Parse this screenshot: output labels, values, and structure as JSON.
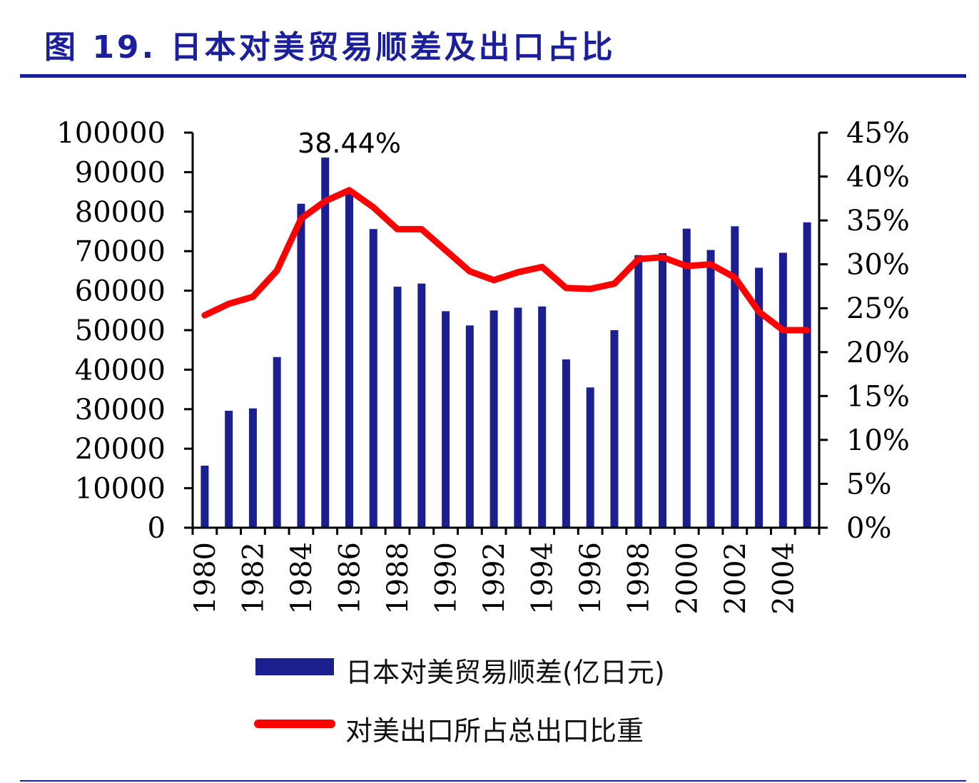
{
  "figure": {
    "title": "图 19. 日本对美贸易顺差及出口占比"
  },
  "colors": {
    "bar": "#1b1f8f",
    "line": "#ff0000",
    "title": "#1b1f9b",
    "axis": "#000000"
  },
  "chart_data": {
    "type": "bar",
    "title": "",
    "x": [
      1980,
      1981,
      1982,
      1983,
      1984,
      1985,
      1986,
      1987,
      1988,
      1989,
      1990,
      1991,
      1992,
      1993,
      1994,
      1995,
      1996,
      1997,
      1998,
      1999,
      2000,
      2001,
      2002,
      2003,
      2004,
      2005
    ],
    "x_tick_labels": [
      "1980",
      "1982",
      "1984",
      "1986",
      "1988",
      "1990",
      "1992",
      "1994",
      "1996",
      "1998",
      "2000",
      "2002",
      "2004"
    ],
    "series": [
      {
        "name": "日本对美贸易顺差(亿日元)",
        "type": "bar",
        "axis": "left",
        "values": [
          15700,
          29600,
          30200,
          43200,
          82000,
          93700,
          85000,
          75600,
          61000,
          61800,
          54800,
          51200,
          55000,
          55700,
          56000,
          42600,
          35500,
          50000,
          69000,
          69500,
          75700,
          70300,
          76300,
          65800,
          69600,
          77300
        ]
      },
      {
        "name": "对美出口所占总出口比重",
        "type": "line",
        "axis": "right",
        "values": [
          24.2,
          25.5,
          26.3,
          29.3,
          35.2,
          37.2,
          38.44,
          36.5,
          34.0,
          34.0,
          31.6,
          29.2,
          28.2,
          29.1,
          29.7,
          27.3,
          27.2,
          27.8,
          30.6,
          30.8,
          29.8,
          30.0,
          28.5,
          24.6,
          22.5,
          22.5
        ]
      }
    ],
    "annotations": [
      {
        "text": "38.44%",
        "x": 1986,
        "series": 1
      }
    ],
    "left_axis": {
      "ylim": [
        0,
        100000
      ],
      "ticks": [
        0,
        10000,
        20000,
        30000,
        40000,
        50000,
        60000,
        70000,
        80000,
        90000,
        100000
      ],
      "tick_labels": [
        "0",
        "10000",
        "20000",
        "30000",
        "40000",
        "50000",
        "60000",
        "70000",
        "80000",
        "90000",
        "100000"
      ]
    },
    "right_axis": {
      "ylim": [
        0,
        45
      ],
      "ticks": [
        0,
        5,
        10,
        15,
        20,
        25,
        30,
        35,
        40,
        45
      ],
      "tick_labels": [
        "0%",
        "5%",
        "10%",
        "15%",
        "20%",
        "25%",
        "30%",
        "35%",
        "40%",
        "45%"
      ]
    },
    "grid": false,
    "legend_position": "bottom"
  }
}
